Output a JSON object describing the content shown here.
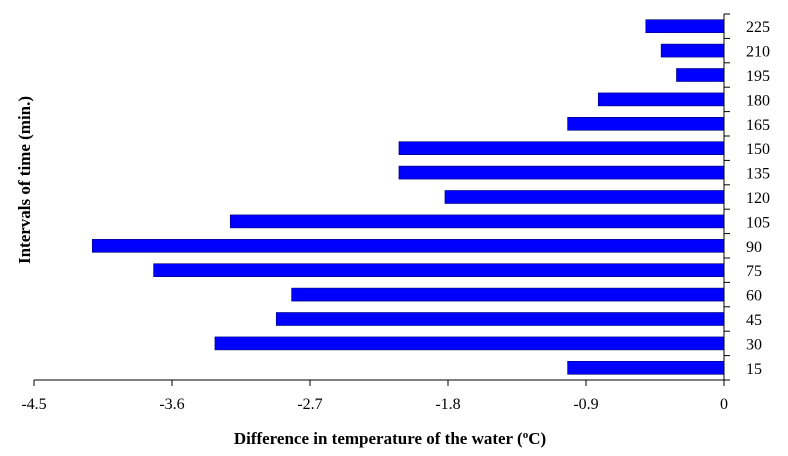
{
  "chart_data": {
    "type": "bar",
    "orientation": "horizontal",
    "xlabel": "Difference in temperature of  the water (",
    "xlabel_superscript": "o",
    "xlabel_suffix": "C)",
    "ylabel": "Intervals of time (min.)",
    "xlim": [
      -4.5,
      0
    ],
    "x_ticks": [
      -4.5,
      -3.6,
      -2.7,
      -1.8,
      -0.9,
      0
    ],
    "x_tick_labels": [
      "-4.5",
      "-3.6",
      "-2.7",
      "-1.8",
      "-0.9",
      "0"
    ],
    "categories": [
      "15",
      "30",
      "45",
      "60",
      "75",
      "90",
      "105",
      "120",
      "135",
      "150",
      "165",
      "180",
      "195",
      "210",
      "225"
    ],
    "values": [
      -1.02,
      -3.32,
      -2.92,
      -2.82,
      -3.72,
      -4.12,
      -3.22,
      -1.82,
      -2.12,
      -2.12,
      -1.02,
      -0.82,
      -0.31,
      -0.41,
      -0.51
    ],
    "bar_color": "#0000FF",
    "legend": "none",
    "grid": false
  }
}
